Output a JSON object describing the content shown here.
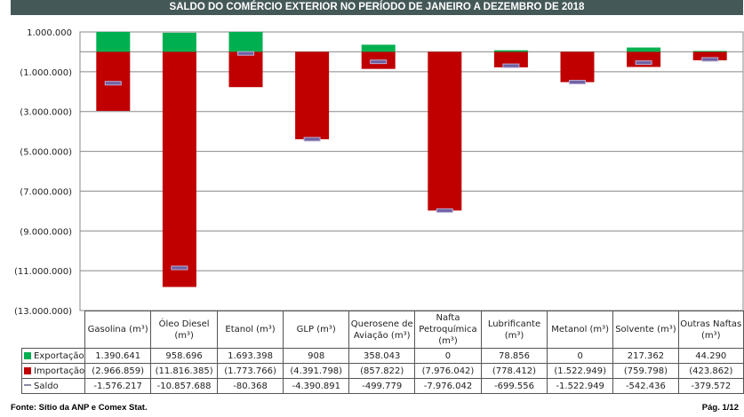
{
  "chart_data": {
    "type": "bar",
    "title": "SALDO DO COMÉRCIO EXTERIOR NO PERÍODO DE JANEIRO A DEZEMBRO DE 2018",
    "categories": [
      "Gasolina (m³)",
      "Óleo Diesel (m³)",
      "Etanol (m³)",
      "GLP (m³)",
      "Querosene de Aviação (m³)",
      "Nafta Petroquímica (m³)",
      "Lubrificante (m³)",
      "Metanol (m³)",
      "Solvente (m³)",
      "Outras Naftas (m³)"
    ],
    "series": [
      {
        "name": "Exportação",
        "color": "#00b050",
        "values": [
          1390641,
          958696,
          1693398,
          908,
          358043,
          0,
          78856,
          0,
          217362,
          44290
        ],
        "labels": [
          "1.390.641",
          "958.696",
          "1.693.398",
          "908",
          "358.043",
          "0",
          "78.856",
          "0",
          "217.362",
          "44.290"
        ]
      },
      {
        "name": "Importação",
        "color": "#c00000",
        "values": [
          -2966859,
          -11816385,
          -1773766,
          -4391798,
          -857822,
          -7976042,
          -778412,
          -1522949,
          -759798,
          -423862
        ],
        "labels": [
          "(2.966.859)",
          "(11.816.385)",
          "(1.773.766)",
          "(4.391.798)",
          "(857.822)",
          "(7.976.042)",
          "(778.412)",
          "(1.522.949)",
          "(759.798)",
          "(423.862)"
        ]
      },
      {
        "name": "Saldo",
        "color": "#7060a0",
        "values": [
          -1576217,
          -10857688,
          -80368,
          -4390891,
          -499779,
          -7976042,
          -699556,
          -1522949,
          -542436,
          -379572
        ],
        "labels": [
          "-1.576.217",
          "-10.857.688",
          "-80.368",
          "-4.390.891",
          "-499.779",
          "-7.976.042",
          "-699.556",
          "-1.522.949",
          "-542.436",
          "-379.572"
        ]
      }
    ],
    "ylim": [
      -13000000,
      1000000
    ],
    "yticks": [
      1000000,
      -1000000,
      -3000000,
      -5000000,
      -7000000,
      -9000000,
      -11000000,
      -13000000
    ],
    "ytick_labels": [
      "1.000.000",
      "(1.000.000)",
      "(3.000.000)",
      "(5.000.000)",
      "(7.000.000)",
      "(9.000.000)",
      "(11.000.000)",
      "(13.000.000)"
    ],
    "grid": true,
    "legend": "data table"
  },
  "footer": {
    "source": "Fonte: Sítio da ANP e Comex Stat.",
    "page": "Pág. 1/12"
  }
}
